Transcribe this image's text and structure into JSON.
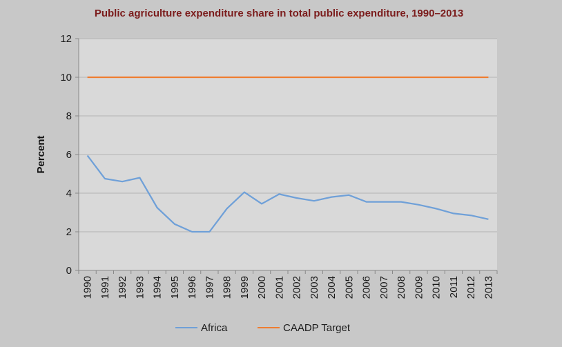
{
  "chart_data": {
    "type": "line",
    "title": "Public agriculture expenditure share in total public expenditure, 1990–2013",
    "xlabel": "",
    "ylabel": "Percent",
    "ylim": [
      0,
      12
    ],
    "yticks": [
      "0",
      "2",
      "4",
      "6",
      "8",
      "10",
      "12"
    ],
    "categories": [
      "1990",
      "1991",
      "1992",
      "1993",
      "1994",
      "1995",
      "1996",
      "1997",
      "1998",
      "1999",
      "2000",
      "2001",
      "2002",
      "2003",
      "2004",
      "2005",
      "2006",
      "2007",
      "2008",
      "2009",
      "2010",
      "2011",
      "2012",
      "2013"
    ],
    "series": [
      {
        "name": "Africa",
        "color": "#6fa0d8",
        "values": [
          5.95,
          4.75,
          4.6,
          4.8,
          3.25,
          2.4,
          2.0,
          2.0,
          3.2,
          4.05,
          3.45,
          3.95,
          3.75,
          3.6,
          3.8,
          3.9,
          3.55,
          3.55,
          3.55,
          3.4,
          3.2,
          2.95,
          2.85,
          2.65
        ]
      },
      {
        "name": "CAADP Target",
        "color": "#ef7d31",
        "values": [
          10,
          10,
          10,
          10,
          10,
          10,
          10,
          10,
          10,
          10,
          10,
          10,
          10,
          10,
          10,
          10,
          10,
          10,
          10,
          10,
          10,
          10,
          10,
          10
        ]
      }
    ],
    "grid": true,
    "legend_position": "bottom"
  },
  "colors": {
    "background": "#c8c8c8",
    "plot_area": "#d9d9d9",
    "grid": "#b3b3b3",
    "title": "#7b1c1c"
  }
}
